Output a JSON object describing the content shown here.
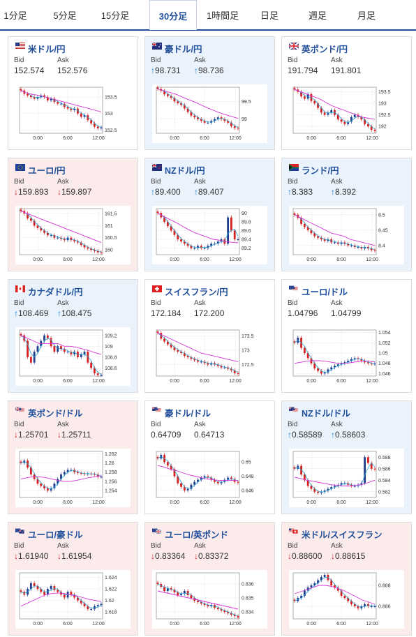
{
  "tabs": [
    "1分足",
    "5分足",
    "15分足",
    "30分足",
    "1時間足",
    "日足",
    "週足",
    "月足"
  ],
  "active_tab": "30分足",
  "labels": {
    "bid": "Bid",
    "ask": "Ask"
  },
  "colors": {
    "up_bg": "#eaf3fb",
    "down_bg": "#fbeceb",
    "up_arrow": "#1a7fd0",
    "down_arrow": "#d02020",
    "title": "#1f4e9a",
    "ma": "#d633d6",
    "ma_short": "#2aa6d6",
    "candle_up": "#1f3c8c",
    "candle_down": "#d42020"
  },
  "pairs": [
    {
      "name": "米ドル/円",
      "flags": [
        "US"
      ],
      "trend": "flat",
      "arrow": "",
      "bid": "152.574",
      "ask": "152.576",
      "icon": "us-flag-icon"
    },
    {
      "name": "豪ドル/円",
      "flags": [
        "AU"
      ],
      "trend": "up",
      "arrow": "↑",
      "bid": "98.731",
      "ask": "98.736",
      "icon": "australia-flag-icon"
    },
    {
      "name": "英ポンド/円",
      "flags": [
        "GB"
      ],
      "trend": "flat",
      "arrow": "",
      "bid": "191.794",
      "ask": "191.801",
      "icon": "uk-flag-icon"
    },
    {
      "name": "ユーロ/円",
      "flags": [
        "EU"
      ],
      "trend": "down",
      "arrow": "↓",
      "bid": "159.893",
      "ask": "159.897",
      "icon": "eu-flag-icon"
    },
    {
      "name": "NZドル/円",
      "flags": [
        "NZ"
      ],
      "trend": "up",
      "arrow": "↑",
      "bid": "89.400",
      "ask": "89.407",
      "icon": "nz-flag-icon"
    },
    {
      "name": "ランド/円",
      "flags": [
        "ZA"
      ],
      "trend": "up",
      "arrow": "↑",
      "bid": "8.383",
      "ask": "8.392",
      "icon": "south-africa-flag-icon"
    },
    {
      "name": "カナダドル/円",
      "flags": [
        "CA"
      ],
      "trend": "up",
      "arrow": "↑",
      "bid": "108.469",
      "ask": "108.475",
      "icon": "canada-flag-icon"
    },
    {
      "name": "スイスフラン/円",
      "flags": [
        "CH"
      ],
      "trend": "flat",
      "arrow": "",
      "bid": "172.184",
      "ask": "172.200",
      "icon": "swiss-flag-icon"
    },
    {
      "name": "ユーロ/ドル",
      "flags": [
        "EU",
        "US"
      ],
      "trend": "flat",
      "arrow": "",
      "bid": "1.04796",
      "ask": "1.04799",
      "icon": "eu-us-flag-icon"
    },
    {
      "name": "英ポンド/ドル",
      "flags": [
        "GB",
        "US"
      ],
      "trend": "down",
      "arrow": "↓",
      "bid": "1.25701",
      "ask": "1.25711",
      "icon": "uk-us-flag-icon"
    },
    {
      "name": "豪ドル/ドル",
      "flags": [
        "AU",
        "US"
      ],
      "trend": "flat",
      "arrow": "",
      "bid": "0.64709",
      "ask": "0.64713",
      "icon": "australia-us-flag-icon"
    },
    {
      "name": "NZドル/ドル",
      "flags": [
        "NZ",
        "US"
      ],
      "trend": "up",
      "arrow": "↑",
      "bid": "0.58589",
      "ask": "0.58603",
      "icon": "nz-us-flag-icon"
    },
    {
      "name": "ユーロ/豪ドル",
      "flags": [
        "EU",
        "AU"
      ],
      "trend": "down",
      "arrow": "↓",
      "bid": "1.61940",
      "ask": "1.61954",
      "icon": "eu-australia-flag-icon"
    },
    {
      "name": "ユーロ/英ポンド",
      "flags": [
        "EU",
        "GB"
      ],
      "trend": "down",
      "arrow": "↓",
      "bid": "0.83364",
      "ask": "0.83372",
      "icon": "eu-uk-flag-icon"
    },
    {
      "name": "米ドル/スイスフラン",
      "flags": [
        "US",
        "CH"
      ],
      "trend": "down",
      "arrow": "↓",
      "bid": "0.88600",
      "ask": "0.88615",
      "icon": "us-swiss-flag-icon"
    }
  ],
  "chart_data": [
    {
      "type": "candlestick",
      "pair": "米ドル/円",
      "x_ticks": [
        "0:00",
        "6:00",
        "12:00"
      ],
      "y_ticks": [
        "153.5",
        "153",
        "152.5"
      ],
      "ylim": [
        152.4,
        153.8
      ],
      "shape": [
        153.7,
        153.6,
        153.55,
        153.5,
        153.45,
        153.5,
        153.55,
        153.5,
        153.4,
        153.45,
        153.35,
        153.3,
        153.3,
        153.2,
        153.15,
        153.1,
        153.15,
        153.0,
        152.9,
        152.95,
        152.8,
        152.7,
        152.6,
        152.55,
        152.58
      ],
      "ma": [
        153.7,
        153.62,
        153.58,
        153.55,
        153.5,
        153.45,
        153.4,
        153.35,
        153.3,
        153.25,
        153.2,
        153.15,
        153.1,
        153.05
      ]
    },
    {
      "type": "candlestick",
      "pair": "豪ドル/円",
      "x_ticks": [
        "0:00",
        "6:00",
        "12:00"
      ],
      "y_ticks": [
        "99.5",
        "99"
      ],
      "ylim": [
        98.6,
        99.9
      ],
      "shape": [
        99.85,
        99.8,
        99.7,
        99.65,
        99.6,
        99.5,
        99.45,
        99.4,
        99.3,
        99.2,
        99.1,
        99.05,
        99.0,
        98.95,
        98.9,
        98.9,
        98.95,
        99.0,
        99.05,
        99.0,
        98.95,
        98.9,
        98.8,
        98.75,
        98.73
      ],
      "ma": [
        99.85,
        99.8,
        99.75,
        99.7,
        99.62,
        99.55,
        99.48,
        99.4,
        99.32,
        99.25,
        99.18,
        99.12,
        99.07,
        99.02
      ]
    },
    {
      "type": "candlestick",
      "pair": "英ポンド/円",
      "x_ticks": [
        "0:00",
        "6:00",
        "12:00"
      ],
      "y_ticks": [
        "193.5",
        "193",
        "192.5",
        "192"
      ],
      "ylim": [
        191.7,
        193.7
      ],
      "shape": [
        193.6,
        193.5,
        193.3,
        193.2,
        193.4,
        193.1,
        193.0,
        192.8,
        192.6,
        192.5,
        192.6,
        192.7,
        192.5,
        192.3,
        192.2,
        192.1,
        192.2,
        192.4,
        192.5,
        192.4,
        192.3,
        192.1,
        192.0,
        191.85,
        191.8
      ],
      "ma": [
        193.6,
        193.5,
        193.4,
        193.3,
        193.2,
        193.05,
        192.9,
        192.8,
        192.7,
        192.6,
        192.5,
        192.4,
        192.35,
        192.3
      ]
    },
    {
      "type": "candlestick",
      "pair": "ユーロ/円",
      "x_ticks": [
        "0:00",
        "6:00",
        "12:00"
      ],
      "y_ticks": [
        "161.5",
        "161",
        "160.5",
        "160"
      ],
      "ylim": [
        159.8,
        161.7
      ],
      "shape": [
        161.6,
        161.5,
        161.3,
        161.2,
        161.0,
        160.9,
        160.8,
        160.7,
        160.6,
        160.6,
        160.5,
        160.5,
        160.45,
        160.4,
        160.5,
        160.4,
        160.35,
        160.3,
        160.2,
        160.1,
        160.05,
        160.0,
        159.95,
        159.9,
        159.89
      ],
      "ma": [
        161.6,
        161.5,
        161.4,
        161.3,
        161.2,
        161.1,
        161.0,
        160.9,
        160.8,
        160.7,
        160.6,
        160.5,
        160.4,
        160.3
      ]
    },
    {
      "type": "candlestick",
      "pair": "NZドル/円",
      "x_ticks": [
        "0:00",
        "6:00",
        "12:00"
      ],
      "y_ticks": [
        "90",
        "89.8",
        "89.6",
        "89.4",
        "89.2"
      ],
      "ylim": [
        89.05,
        90.1
      ],
      "shape": [
        90.0,
        89.9,
        89.8,
        89.7,
        89.6,
        89.5,
        89.4,
        89.35,
        89.3,
        89.25,
        89.2,
        89.2,
        89.25,
        89.2,
        89.2,
        89.25,
        89.3,
        89.3,
        89.35,
        89.4,
        89.3,
        89.9,
        89.6,
        89.4,
        89.4
      ],
      "ma": [
        90.0,
        89.92,
        89.85,
        89.78,
        89.7,
        89.62,
        89.55,
        89.5,
        89.45,
        89.4,
        89.38,
        89.35,
        89.33,
        89.32
      ]
    },
    {
      "type": "candlestick",
      "pair": "ランド/円",
      "x_ticks": [
        "0:00",
        "6:00",
        "12:00"
      ],
      "y_ticks": [
        "8.5",
        "8.45",
        "8.4"
      ],
      "ylim": [
        8.37,
        8.52
      ],
      "shape": [
        8.5,
        8.49,
        8.47,
        8.46,
        8.45,
        8.44,
        8.43,
        8.425,
        8.42,
        8.415,
        8.42,
        8.41,
        8.41,
        8.405,
        8.41,
        8.405,
        8.4,
        8.4,
        8.395,
        8.395,
        8.39,
        8.395,
        8.39,
        8.385,
        8.383
      ],
      "ma": [
        8.5,
        8.49,
        8.48,
        8.47,
        8.46,
        8.45,
        8.44,
        8.435,
        8.43,
        8.42,
        8.415,
        8.41,
        8.405,
        8.4
      ]
    },
    {
      "type": "candlestick",
      "pair": "カナダドル/円",
      "x_ticks": [
        "0:00",
        "6:00",
        "12:00"
      ],
      "y_ticks": [
        "109.2",
        "109",
        "108.8",
        "108.6"
      ],
      "ylim": [
        108.45,
        109.3
      ],
      "shape": [
        109.2,
        109.1,
        108.8,
        108.7,
        108.9,
        109.0,
        109.1,
        109.2,
        109.15,
        109.0,
        108.9,
        109.0,
        108.95,
        108.9,
        108.9,
        108.85,
        108.9,
        108.8,
        108.85,
        108.9,
        108.7,
        108.6,
        108.5,
        108.47,
        108.47
      ],
      "ma": [
        109.2,
        109.15,
        109.1,
        109.05,
        109.05,
        109.05,
        109.05,
        109.0,
        109.0,
        108.98,
        108.95,
        108.92,
        108.88,
        108.85
      ]
    },
    {
      "type": "candlestick",
      "pair": "スイスフラン/円",
      "x_ticks": [
        "0:00",
        "6:00",
        "12:00"
      ],
      "y_ticks": [
        "173.5",
        "173",
        "172.5"
      ],
      "ylim": [
        172.1,
        173.7
      ],
      "shape": [
        173.6,
        173.4,
        173.3,
        173.2,
        173.1,
        173.0,
        172.95,
        172.9,
        172.8,
        172.75,
        172.7,
        172.65,
        172.6,
        172.6,
        172.55,
        172.5,
        172.55,
        172.5,
        172.45,
        172.4,
        172.4,
        172.35,
        172.3,
        172.2,
        172.18
      ],
      "ma": [
        173.6,
        173.5,
        173.4,
        173.3,
        173.2,
        173.1,
        173.0,
        172.9,
        172.85,
        172.8,
        172.75,
        172.7,
        172.65,
        172.6
      ]
    },
    {
      "type": "candlestick",
      "pair": "ユーロ/ドル",
      "x_ticks": [
        "0:00",
        "6:00",
        "12:00"
      ],
      "y_ticks": [
        "1.054",
        "1.052",
        "1.05",
        "1.048",
        "1.046"
      ],
      "ylim": [
        1.0455,
        1.0545
      ],
      "shape": [
        1.052,
        1.053,
        1.051,
        1.05,
        1.049,
        1.048,
        1.047,
        1.0465,
        1.046,
        1.0462,
        1.0468,
        1.0472,
        1.0475,
        1.0478,
        1.048,
        1.0482,
        1.0485,
        1.0488,
        1.049,
        1.0488,
        1.0485,
        1.0482,
        1.048,
        1.0479,
        1.0479
      ],
      "ma": [
        1.048,
        1.0482,
        1.0484,
        1.0485,
        1.0485,
        1.0484,
        1.0482,
        1.048,
        1.048,
        1.0481,
        1.0483,
        1.0484,
        1.0484,
        1.0483
      ]
    },
    {
      "type": "candlestick",
      "pair": "英ポンド/ドル",
      "x_ticks": [
        "0:00",
        "6:00",
        "12:00"
      ],
      "y_ticks": [
        "1.262",
        "1.26",
        "1.258",
        "1.256",
        "1.254"
      ],
      "ylim": [
        1.2525,
        1.2625
      ],
      "shape": [
        1.26,
        1.2605,
        1.259,
        1.2575,
        1.2565,
        1.2555,
        1.255,
        1.2545,
        1.254,
        1.2545,
        1.2555,
        1.2565,
        1.2575,
        1.258,
        1.2585,
        1.2585,
        1.258,
        1.2578,
        1.2577,
        1.2576,
        1.2577,
        1.2576,
        1.2575,
        1.257,
        1.257
      ],
      "ma": [
        1.2565,
        1.2568,
        1.257,
        1.257,
        1.2568,
        1.2565,
        1.2562,
        1.256,
        1.256,
        1.2562,
        1.2565,
        1.2568,
        1.257,
        1.2572
      ]
    },
    {
      "type": "candlestick",
      "pair": "豪ドル/ドル",
      "x_ticks": [
        "0:00",
        "6:00",
        "12:00"
      ],
      "y_ticks": [
        "0.65",
        "0.648",
        "0.646"
      ],
      "ylim": [
        0.645,
        0.6515
      ],
      "shape": [
        0.6505,
        0.651,
        0.65,
        0.6495,
        0.649,
        0.648,
        0.647,
        0.6465,
        0.646,
        0.6462,
        0.6468,
        0.6472,
        0.6475,
        0.6478,
        0.648,
        0.6478,
        0.6475,
        0.6472,
        0.647,
        0.6472,
        0.6475,
        0.6478,
        0.6476,
        0.6472,
        0.6471
      ],
      "ma": [
        0.6495,
        0.6493,
        0.649,
        0.6488,
        0.6485,
        0.6482,
        0.648,
        0.6478,
        0.6476,
        0.6475,
        0.6474,
        0.6474,
        0.6474,
        0.6474
      ]
    },
    {
      "type": "candlestick",
      "pair": "NZドル/ドル",
      "x_ticks": [
        "0:00",
        "6:00",
        "12:00"
      ],
      "y_ticks": [
        "0.588",
        "0.586",
        "0.584",
        "0.582"
      ],
      "ylim": [
        0.581,
        0.589
      ],
      "shape": [
        0.586,
        0.5865,
        0.585,
        0.584,
        0.583,
        0.5825,
        0.582,
        0.5818,
        0.582,
        0.5822,
        0.5825,
        0.5828,
        0.583,
        0.5832,
        0.5835,
        0.5835,
        0.5832,
        0.583,
        0.583,
        0.5832,
        0.5835,
        0.588,
        0.587,
        0.586,
        0.5859
      ],
      "ma": [
        0.5845,
        0.5843,
        0.584,
        0.5838,
        0.5836,
        0.5834,
        0.5832,
        0.5831,
        0.583,
        0.583,
        0.5831,
        0.5833,
        0.5836,
        0.584
      ]
    },
    {
      "type": "candlestick",
      "pair": "ユーロ/豪ドル",
      "x_ticks": [
        "0:00",
        "6:00",
        "12:00"
      ],
      "y_ticks": [
        "1.624",
        "1.622",
        "1.62",
        "1.618"
      ],
      "ylim": [
        1.6168,
        1.6248
      ],
      "shape": [
        1.6215,
        1.621,
        1.622,
        1.623,
        1.6225,
        1.622,
        1.6215,
        1.621,
        1.622,
        1.6225,
        1.6218,
        1.6215,
        1.621,
        1.6205,
        1.6215,
        1.621,
        1.6205,
        1.62,
        1.6195,
        1.619,
        1.6185,
        1.6185,
        1.619,
        1.6192,
        1.6194
      ],
      "ma": [
        1.619,
        1.6195,
        1.62,
        1.6205,
        1.621,
        1.6212,
        1.6213,
        1.6212,
        1.621,
        1.6208,
        1.6205,
        1.6202,
        1.62,
        1.6198
      ]
    },
    {
      "type": "candlestick",
      "pair": "ユーロ/英ポンド",
      "x_ticks": [
        "0:00",
        "6:00",
        "12:00"
      ],
      "y_ticks": [
        "0.836",
        "0.835",
        "0.834"
      ],
      "ylim": [
        0.8335,
        0.8368
      ],
      "shape": [
        0.836,
        0.8358,
        0.8355,
        0.8357,
        0.8356,
        0.8354,
        0.8352,
        0.8353,
        0.8355,
        0.8352,
        0.835,
        0.8348,
        0.8347,
        0.8346,
        0.8345,
        0.8344,
        0.8345,
        0.8343,
        0.8342,
        0.8341,
        0.834,
        0.8339,
        0.8338,
        0.8337,
        0.8336
      ],
      "ma": [
        0.8355,
        0.8354,
        0.8353,
        0.8352,
        0.8351,
        0.835,
        0.8349,
        0.8348,
        0.8347,
        0.8346,
        0.8345,
        0.8344,
        0.8343,
        0.8342
      ]
    },
    {
      "type": "candlestick",
      "pair": "米ドル/スイスフラン",
      "x_ticks": [
        "0:00",
        "6:00",
        "12:00"
      ],
      "y_ticks": [
        "0.888",
        "0.886"
      ],
      "ylim": [
        0.8848,
        0.8892
      ],
      "shape": [
        0.8865,
        0.8868,
        0.887,
        0.8875,
        0.8878,
        0.888,
        0.8882,
        0.8885,
        0.8888,
        0.889,
        0.8885,
        0.888,
        0.8878,
        0.8875,
        0.887,
        0.8868,
        0.8865,
        0.8862,
        0.886,
        0.8858,
        0.886,
        0.8862,
        0.886,
        0.886,
        0.886
      ],
      "ma": [
        0.8872,
        0.8874,
        0.8876,
        0.8878,
        0.888,
        0.888,
        0.8879,
        0.8877,
        0.8875,
        0.8872,
        0.8869,
        0.8866,
        0.8864,
        0.8862
      ]
    }
  ]
}
